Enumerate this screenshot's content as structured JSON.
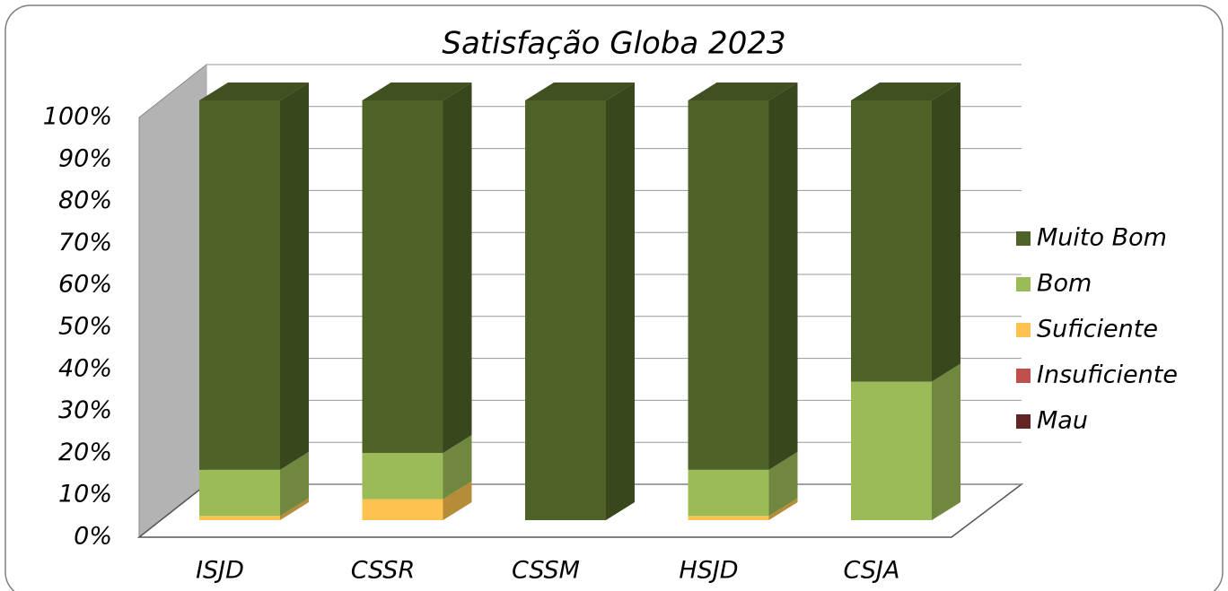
{
  "chart_data": {
    "type": "bar3d_stacked",
    "title": "Satisfação Globa 2023",
    "categories": [
      "ISJD",
      "CSSR",
      "CSSM",
      "HSJD",
      "CSJA"
    ],
    "series": [
      {
        "name": "Muito Bom",
        "color": "#4f6228",
        "values": [
          88,
          84,
          100,
          88,
          67
        ]
      },
      {
        "name": "Bom",
        "color": "#9bbb59",
        "values": [
          11,
          11,
          0,
          11,
          33
        ]
      },
      {
        "name": "Suficiente",
        "color": "#fcc44f",
        "values": [
          1,
          5,
          0,
          1,
          0
        ]
      },
      {
        "name": "Insuficiente",
        "color": "#c0504d",
        "values": [
          0,
          0,
          0,
          0,
          0
        ]
      },
      {
        "name": "Mau",
        "color": "#632523",
        "values": [
          0,
          0,
          0,
          0,
          0
        ]
      }
    ],
    "ylim": [
      0,
      100
    ],
    "yticks": [
      {
        "value": 0,
        "label": "0%"
      },
      {
        "value": 10,
        "label": "10%"
      },
      {
        "value": 20,
        "label": "20%"
      },
      {
        "value": 30,
        "label": "30%"
      },
      {
        "value": 40,
        "label": "40%"
      },
      {
        "value": 50,
        "label": "50%"
      },
      {
        "value": 60,
        "label": "60%"
      },
      {
        "value": 70,
        "label": "70%"
      },
      {
        "value": 80,
        "label": "80%"
      },
      {
        "value": 90,
        "label": "90%"
      },
      {
        "value": 100,
        "label": "100%"
      }
    ],
    "grid": true,
    "legend": "right"
  }
}
